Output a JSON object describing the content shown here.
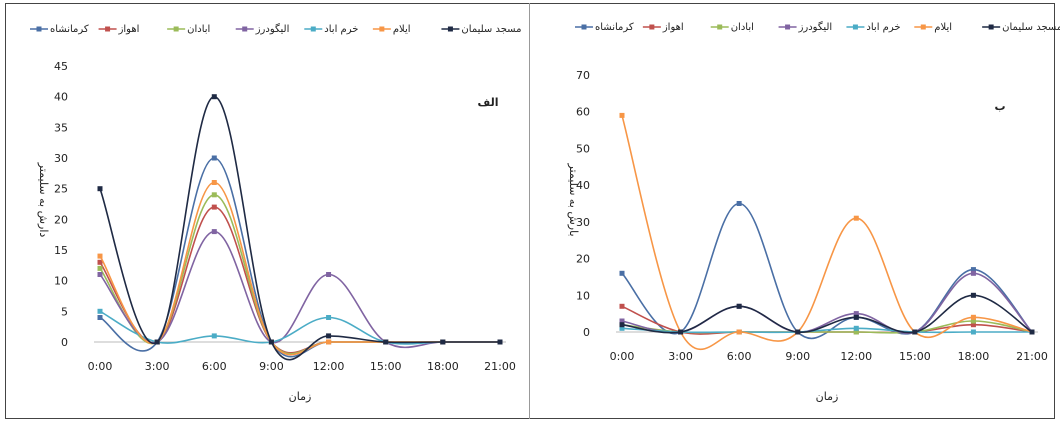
{
  "chart_data": [
    {
      "type": "line",
      "panel_label": "الف",
      "xlabel": "زمان",
      "ylabel": "دارش به سلیمتر",
      "categories": [
        "0:00",
        "3:00",
        "6:00",
        "9:00",
        "12:00",
        "15:00",
        "18:00",
        "21:00"
      ],
      "ylim": [
        0,
        45
      ],
      "yticks": [
        0,
        5,
        10,
        15,
        20,
        25,
        30,
        35,
        40,
        45
      ],
      "grid": false,
      "legend_position": "top",
      "series": [
        {
          "name": "کرمانشاه",
          "color": "#4a6fa5",
          "values": [
            4,
            0,
            30,
            0,
            0,
            0,
            0,
            0
          ]
        },
        {
          "name": "اهواز",
          "color": "#c0504d",
          "values": [
            13,
            0,
            22,
            0,
            0,
            0,
            0,
            0
          ]
        },
        {
          "name": "ابادان",
          "color": "#9bbb59",
          "values": [
            12,
            0,
            24,
            0,
            0,
            0,
            0,
            0
          ]
        },
        {
          "name": "الیگودرز",
          "color": "#8064a2",
          "values": [
            11,
            0,
            18,
            0,
            11,
            0,
            0,
            0
          ]
        },
        {
          "name": "خرم اباد",
          "color": "#4bacc6",
          "values": [
            5,
            0,
            1,
            0,
            4,
            0,
            0,
            0
          ]
        },
        {
          "name": "ایلام",
          "color": "#f79646",
          "values": [
            14,
            0,
            26,
            0,
            0,
            0,
            0,
            0
          ]
        },
        {
          "name": "مسجد سلیمان",
          "color": "#1f2a44",
          "values": [
            25,
            0,
            40,
            0,
            1,
            0,
            0,
            0
          ]
        }
      ]
    },
    {
      "type": "line",
      "panel_label": "ب",
      "xlabel": "زمان",
      "ylabel": "بارش به سلیمتر",
      "categories": [
        "0:00",
        "3:00",
        "6:00",
        "9:00",
        "12:00",
        "15:00",
        "18:00",
        "21:00"
      ],
      "ylim": [
        0,
        70
      ],
      "yticks": [
        0,
        10,
        20,
        30,
        40,
        50,
        60,
        70
      ],
      "grid": false,
      "legend_position": "top",
      "series": [
        {
          "name": "کرمانشاه",
          "color": "#4a6fa5",
          "values": [
            16,
            0,
            35,
            0,
            4,
            0,
            17,
            0
          ]
        },
        {
          "name": "اهواز",
          "color": "#c0504d",
          "values": [
            7,
            0,
            0,
            0,
            0,
            0,
            2,
            0
          ]
        },
        {
          "name": "ابادان",
          "color": "#9bbb59",
          "values": [
            2,
            0,
            0,
            0,
            0,
            0,
            3,
            0
          ]
        },
        {
          "name": "الیگودرز",
          "color": "#8064a2",
          "values": [
            3,
            0,
            7,
            0,
            5,
            0,
            16,
            0
          ]
        },
        {
          "name": "خرم اباد",
          "color": "#4bacc6",
          "values": [
            1,
            0,
            0,
            0,
            1,
            0,
            0,
            0
          ]
        },
        {
          "name": "ایلام",
          "color": "#f79646",
          "values": [
            59,
            0,
            0,
            0,
            31,
            0,
            4,
            0
          ]
        },
        {
          "name": "مسجد سلیمان",
          "color": "#1f2a44",
          "values": [
            2,
            0,
            7,
            0,
            4,
            0,
            10,
            0
          ]
        }
      ]
    }
  ]
}
